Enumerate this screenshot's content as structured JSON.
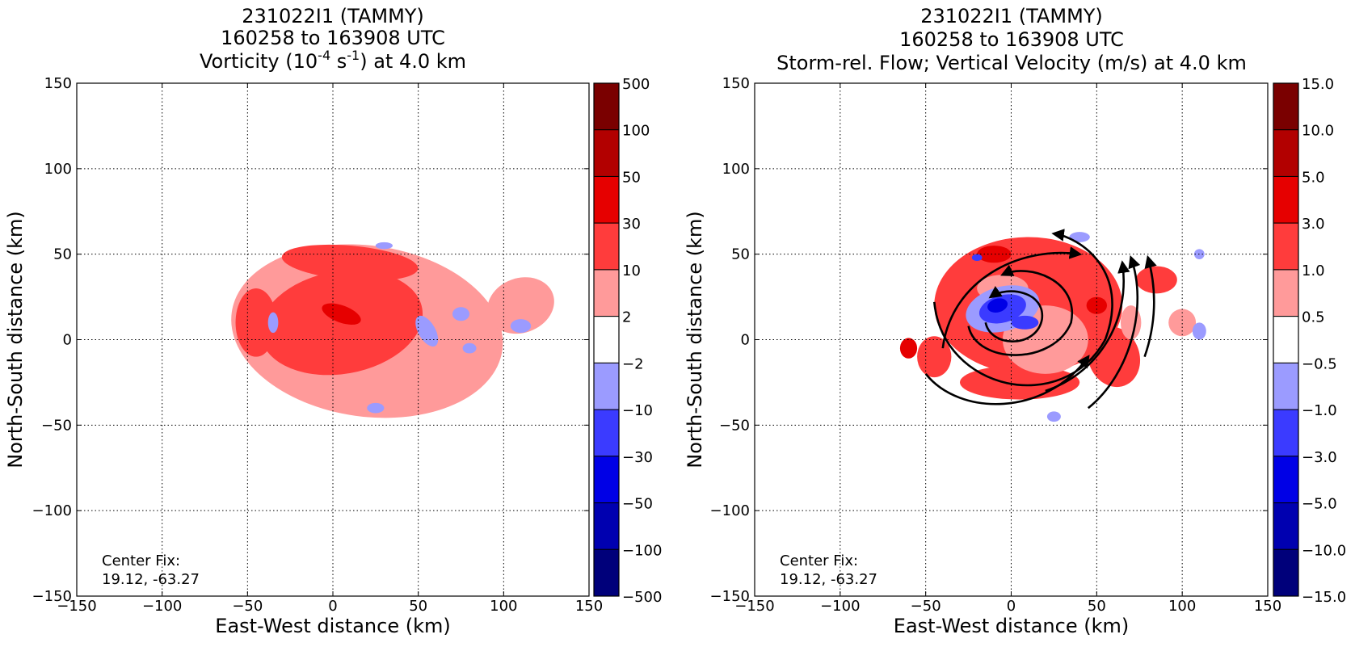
{
  "chart_data": [
    {
      "type": "heatmap",
      "title_lines": [
        "231022I1 (TAMMY)",
        "160258 to 163908 UTC"
      ],
      "title_field": {
        "pre": "Vorticity (10",
        "sup1": "-4",
        "mid": " s",
        "sup2": "-1",
        "post": ") at 4.0 km"
      },
      "xlabel": "East-West distance (km)",
      "ylabel": "North-South distance (km)",
      "xlim": [
        -150,
        150
      ],
      "ylim": [
        -150,
        150
      ],
      "xticks": [
        -150,
        -100,
        -50,
        0,
        50,
        100,
        150
      ],
      "yticks": [
        -150,
        -100,
        -50,
        0,
        50,
        100,
        150
      ],
      "xtick_labels": [
        "−150",
        "−100",
        "−50",
        "0",
        "50",
        "100",
        "150"
      ],
      "ytick_labels": [
        "−150",
        "−100",
        "−50",
        "0",
        "50",
        "100",
        "150"
      ],
      "grid": true,
      "annotation": [
        "Center Fix:",
        "19.12, -63.27"
      ],
      "colorbar": {
        "labels": [
          "500",
          "100",
          "50",
          "30",
          "10",
          "2",
          "−2",
          "−10",
          "−30",
          "−50",
          "−100",
          "−500"
        ],
        "colors": [
          "#7a0000",
          "#b20000",
          "#e60000",
          "#ff3c3c",
          "#ff9a9a",
          "#ffffff",
          "#9b9bff",
          "#3b3bff",
          "#0000e6",
          "#0000b0",
          "#00007a"
        ]
      },
      "regions": [
        {
          "level": 1,
          "cx": 20,
          "cy": 5,
          "rx": 80,
          "ry": 50,
          "rot": -8
        },
        {
          "level": 1,
          "cx": 110,
          "cy": 20,
          "rx": 20,
          "ry": 16,
          "rot": 20
        },
        {
          "level": 2,
          "cx": 5,
          "cy": 10,
          "rx": 48,
          "ry": 30,
          "rot": 10
        },
        {
          "level": 2,
          "cx": 10,
          "cy": 45,
          "rx": 40,
          "ry": 10,
          "rot": -5
        },
        {
          "level": 2,
          "cx": -45,
          "cy": 10,
          "rx": 12,
          "ry": 20,
          "rot": 0
        },
        {
          "level": 3,
          "cx": 5,
          "cy": 15,
          "rx": 12,
          "ry": 5,
          "rot": -20
        },
        {
          "level": -1,
          "cx": 55,
          "cy": 5,
          "rx": 5,
          "ry": 10,
          "rot": 30
        },
        {
          "level": -1,
          "cx": 110,
          "cy": 8,
          "rx": 6,
          "ry": 4,
          "rot": 0
        },
        {
          "level": -1,
          "cx": 75,
          "cy": 15,
          "rx": 5,
          "ry": 4,
          "rot": 0
        },
        {
          "level": -1,
          "cx": -35,
          "cy": 10,
          "rx": 3,
          "ry": 6,
          "rot": 0
        },
        {
          "level": -1,
          "cx": 30,
          "cy": 55,
          "rx": 5,
          "ry": 2,
          "rot": 0
        },
        {
          "level": -1,
          "cx": 80,
          "cy": -5,
          "rx": 4,
          "ry": 3,
          "rot": 0
        },
        {
          "level": -1,
          "cx": 25,
          "cy": -40,
          "rx": 5,
          "ry": 3,
          "rot": 0
        }
      ]
    },
    {
      "type": "heatmap",
      "title_lines": [
        "231022I1 (TAMMY)",
        "160258 to 163908 UTC",
        "Storm-rel. Flow; Vertical Velocity (m/s) at 4.0 km"
      ],
      "xlabel": "East-West distance (km)",
      "ylabel": "North-South distance (km)",
      "xlim": [
        -150,
        150
      ],
      "ylim": [
        -150,
        150
      ],
      "xticks": [
        -150,
        -100,
        -50,
        0,
        50,
        100,
        150
      ],
      "yticks": [
        -150,
        -100,
        -50,
        0,
        50,
        100,
        150
      ],
      "xtick_labels": [
        "−150",
        "−100",
        "−50",
        "0",
        "50",
        "100",
        "150"
      ],
      "ytick_labels": [
        "−150",
        "−100",
        "−50",
        "0",
        "50",
        "100",
        "150"
      ],
      "grid": true,
      "annotation": [
        "Center Fix:",
        "19.12, -63.27"
      ],
      "colorbar": {
        "labels": [
          "15.0",
          "10.0",
          "5.0",
          "3.0",
          "1.0",
          "0.5",
          "−0.5",
          "−1.0",
          "−3.0",
          "−5.0",
          "−10.0",
          "−15.0"
        ],
        "colors": [
          "#7a0000",
          "#b20000",
          "#e60000",
          "#ff3c3c",
          "#ff9a9a",
          "#ffffff",
          "#9b9bff",
          "#3b3bff",
          "#0000e6",
          "#0000b0",
          "#00007a"
        ]
      },
      "regions": [
        {
          "level": 2,
          "cx": 10,
          "cy": 20,
          "rx": 55,
          "ry": 40,
          "rot": 0
        },
        {
          "level": 2,
          "cx": -45,
          "cy": -10,
          "rx": 10,
          "ry": 12,
          "rot": 0
        },
        {
          "level": 2,
          "cx": 85,
          "cy": 35,
          "rx": 12,
          "ry": 8,
          "rot": 0
        },
        {
          "level": 2,
          "cx": 60,
          "cy": -10,
          "rx": 15,
          "ry": 18,
          "rot": 20
        },
        {
          "level": 2,
          "cx": 5,
          "cy": -25,
          "rx": 35,
          "ry": 10,
          "rot": 0
        },
        {
          "level": 1,
          "cx": 20,
          "cy": 0,
          "rx": 25,
          "ry": 20,
          "rot": 0
        },
        {
          "level": 1,
          "cx": -5,
          "cy": 30,
          "rx": 15,
          "ry": 8,
          "rot": 0
        },
        {
          "level": 1,
          "cx": 70,
          "cy": 10,
          "rx": 6,
          "ry": 10,
          "rot": 0
        },
        {
          "level": 1,
          "cx": 100,
          "cy": 10,
          "rx": 8,
          "ry": 8,
          "rot": 0
        },
        {
          "level": 3,
          "cx": -10,
          "cy": 50,
          "rx": 10,
          "ry": 5,
          "rot": 0
        },
        {
          "level": 3,
          "cx": 50,
          "cy": 20,
          "rx": 6,
          "ry": 5,
          "rot": 0
        },
        {
          "level": 3,
          "cx": -60,
          "cy": -5,
          "rx": 5,
          "ry": 6,
          "rot": 0
        },
        {
          "level": -1,
          "cx": -5,
          "cy": 18,
          "rx": 22,
          "ry": 13,
          "rot": 15
        },
        {
          "level": -1,
          "cx": 110,
          "cy": 50,
          "rx": 3,
          "ry": 3,
          "rot": 0
        },
        {
          "level": -1,
          "cx": 110,
          "cy": 5,
          "rx": 4,
          "ry": 5,
          "rot": 0
        },
        {
          "level": -1,
          "cx": 40,
          "cy": 60,
          "rx": 6,
          "ry": 3,
          "rot": 0
        },
        {
          "level": -1,
          "cx": 25,
          "cy": -45,
          "rx": 4,
          "ry": 3,
          "rot": 0
        },
        {
          "level": -2,
          "cx": -5,
          "cy": 18,
          "rx": 14,
          "ry": 8,
          "rot": 15
        },
        {
          "level": -2,
          "cx": 8,
          "cy": 10,
          "rx": 8,
          "ry": 4,
          "rot": 0
        },
        {
          "level": -2,
          "cx": -20,
          "cy": 48,
          "rx": 3,
          "ry": 2,
          "rot": 0
        },
        {
          "level": -3,
          "cx": -8,
          "cy": 20,
          "rx": 6,
          "ry": 4,
          "rot": 15
        }
      ]
    }
  ]
}
